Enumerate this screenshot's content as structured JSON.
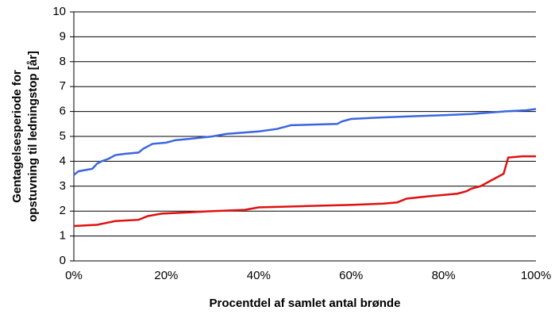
{
  "chart_data": {
    "type": "line",
    "xlabel": "Procentdel af samlet antal brønde",
    "ylabel": [
      "Gentagelsesperiode for",
      "opstuvning til ledningstop [år]"
    ],
    "xlim": [
      0,
      100
    ],
    "xticks": [
      {
        "value": 0,
        "label": "0%"
      },
      {
        "value": 20,
        "label": "20%"
      },
      {
        "value": 40,
        "label": "40%"
      },
      {
        "value": 60,
        "label": "60%"
      },
      {
        "value": 80,
        "label": "80%"
      },
      {
        "value": 100,
        "label": "100%"
      }
    ],
    "ylim": [
      0,
      10
    ],
    "yticks": [
      0,
      1,
      2,
      3,
      4,
      5,
      6,
      7,
      8,
      9,
      10
    ],
    "grid": true,
    "series": [
      {
        "color": "#3a66e0",
        "x": [
          0,
          1,
          4,
          5,
          6,
          7.5,
          9,
          11,
          14,
          15,
          16,
          17,
          20,
          22,
          25,
          30,
          33,
          40,
          44,
          47,
          57,
          58,
          60,
          65,
          72,
          80,
          86,
          93,
          98,
          100
        ],
        "values": [
          3.45,
          3.6,
          3.7,
          3.9,
          4.0,
          4.1,
          4.25,
          4.3,
          4.35,
          4.5,
          4.6,
          4.7,
          4.75,
          4.85,
          4.9,
          5.0,
          5.1,
          5.2,
          5.3,
          5.45,
          5.5,
          5.6,
          5.7,
          5.75,
          5.8,
          5.85,
          5.9,
          6.0,
          6.05,
          6.1
        ]
      },
      {
        "color": "#e01010",
        "x": [
          0,
          5,
          9,
          14,
          16,
          19,
          25,
          30,
          37,
          40,
          50,
          60,
          67,
          70,
          72,
          77,
          83,
          85,
          86,
          88,
          90,
          92,
          93,
          94,
          97,
          100
        ],
        "values": [
          1.4,
          1.45,
          1.6,
          1.65,
          1.8,
          1.9,
          1.95,
          2.0,
          2.05,
          2.15,
          2.2,
          2.25,
          2.3,
          2.35,
          2.5,
          2.6,
          2.7,
          2.8,
          2.9,
          3.0,
          3.2,
          3.4,
          3.5,
          4.15,
          4.2,
          4.2
        ]
      }
    ]
  }
}
